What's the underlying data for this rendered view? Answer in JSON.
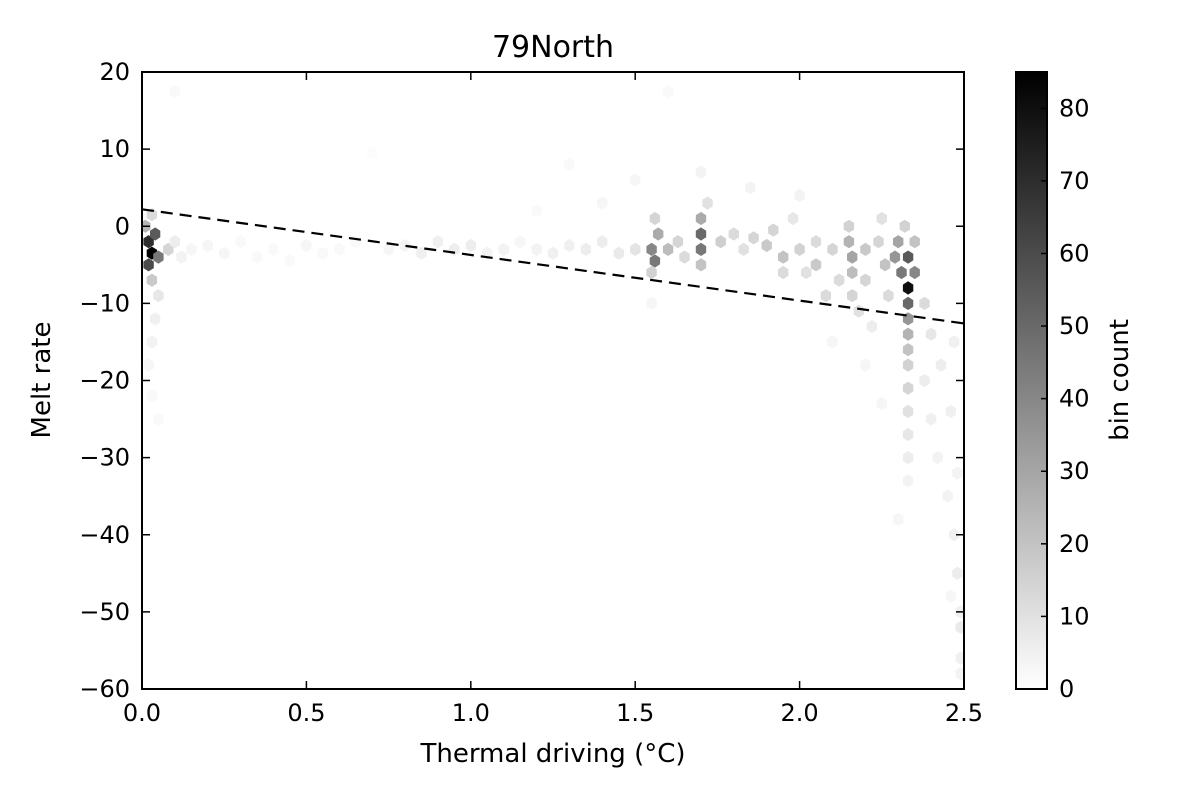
{
  "chart_data": {
    "type": "heatmap",
    "subtype": "hexbin",
    "title": "79North",
    "xlabel": "Thermal driving (°C)",
    "ylabel": "Melt rate",
    "xlim": [
      0.0,
      2.5
    ],
    "ylim": [
      -60,
      20
    ],
    "x_ticks": [
      0.0,
      0.5,
      1.0,
      1.5,
      2.0,
      2.5
    ],
    "x_tick_labels": [
      "0.0",
      "0.5",
      "1.0",
      "1.5",
      "2.0",
      "2.5"
    ],
    "y_ticks": [
      20,
      10,
      0,
      -10,
      -20,
      -30,
      -40,
      -50,
      -60
    ],
    "y_tick_labels": [
      "20",
      "10",
      "0",
      "−10",
      "−20",
      "−30",
      "−40",
      "−50",
      "−60"
    ],
    "grid": false,
    "colormap": "Greys",
    "colorbar": {
      "label": "bin count",
      "min": 0,
      "max": 85,
      "ticks": [
        0,
        10,
        20,
        30,
        40,
        50,
        60,
        70,
        80
      ],
      "tick_labels": [
        "0",
        "10",
        "20",
        "30",
        "40",
        "50",
        "60",
        "70",
        "80"
      ]
    },
    "fit_line": {
      "style": "dashed",
      "color": "#000000",
      "x": [
        0.0,
        2.5
      ],
      "y": [
        2.2,
        -12.6
      ]
    },
    "bins": [
      {
        "x": 0.02,
        "y": -2,
        "count": 70
      },
      {
        "x": 0.03,
        "y": -3.5,
        "count": 85
      },
      {
        "x": 0.02,
        "y": -5,
        "count": 60
      },
      {
        "x": 0.04,
        "y": -1,
        "count": 55
      },
      {
        "x": 0.05,
        "y": -4,
        "count": 45
      },
      {
        "x": 0.01,
        "y": 0,
        "count": 25
      },
      {
        "x": 0.03,
        "y": 1.5,
        "count": 12
      },
      {
        "x": 0.03,
        "y": -7,
        "count": 18
      },
      {
        "x": 0.05,
        "y": -9,
        "count": 8
      },
      {
        "x": 0.04,
        "y": -12,
        "count": 5
      },
      {
        "x": 0.03,
        "y": -15,
        "count": 4
      },
      {
        "x": 0.02,
        "y": -18,
        "count": 3
      },
      {
        "x": 0.03,
        "y": -22,
        "count": 2
      },
      {
        "x": 0.05,
        "y": -25,
        "count": 2
      },
      {
        "x": 0.08,
        "y": -3,
        "count": 14
      },
      {
        "x": 0.1,
        "y": -2,
        "count": 6
      },
      {
        "x": 0.12,
        "y": -4,
        "count": 4
      },
      {
        "x": 0.15,
        "y": -3,
        "count": 3
      },
      {
        "x": 0.1,
        "y": 17.5,
        "count": 2
      },
      {
        "x": 0.2,
        "y": -2.5,
        "count": 3
      },
      {
        "x": 0.25,
        "y": -3.5,
        "count": 3
      },
      {
        "x": 0.3,
        "y": -2,
        "count": 2
      },
      {
        "x": 0.35,
        "y": -4,
        "count": 2
      },
      {
        "x": 0.4,
        "y": -3,
        "count": 2
      },
      {
        "x": 0.45,
        "y": -4.5,
        "count": 2
      },
      {
        "x": 0.5,
        "y": -2.5,
        "count": 3
      },
      {
        "x": 0.55,
        "y": -3.5,
        "count": 2
      },
      {
        "x": 0.6,
        "y": -3,
        "count": 2
      },
      {
        "x": 0.65,
        "y": -2,
        "count": 2
      },
      {
        "x": 0.7,
        "y": 9.5,
        "count": 1
      },
      {
        "x": 0.75,
        "y": -3,
        "count": 3
      },
      {
        "x": 0.8,
        "y": -2.5,
        "count": 4
      },
      {
        "x": 0.85,
        "y": -3.5,
        "count": 5
      },
      {
        "x": 0.9,
        "y": -2,
        "count": 5
      },
      {
        "x": 0.95,
        "y": -3,
        "count": 6
      },
      {
        "x": 1.0,
        "y": -2.5,
        "count": 6
      },
      {
        "x": 1.05,
        "y": -3.5,
        "count": 4
      },
      {
        "x": 1.1,
        "y": -3,
        "count": 4
      },
      {
        "x": 1.15,
        "y": -2,
        "count": 3
      },
      {
        "x": 1.2,
        "y": -3,
        "count": 4
      },
      {
        "x": 1.25,
        "y": -3.5,
        "count": 5
      },
      {
        "x": 1.3,
        "y": -2.5,
        "count": 5
      },
      {
        "x": 1.35,
        "y": -3,
        "count": 6
      },
      {
        "x": 1.4,
        "y": -2,
        "count": 6
      },
      {
        "x": 1.45,
        "y": -3.5,
        "count": 7
      },
      {
        "x": 1.5,
        "y": -3,
        "count": 9
      },
      {
        "x": 1.55,
        "y": -3,
        "count": 40
      },
      {
        "x": 1.56,
        "y": -4.5,
        "count": 45
      },
      {
        "x": 1.57,
        "y": -1,
        "count": 28
      },
      {
        "x": 1.56,
        "y": 1,
        "count": 14
      },
      {
        "x": 1.55,
        "y": -6,
        "count": 15
      },
      {
        "x": 1.6,
        "y": -3,
        "count": 22
      },
      {
        "x": 1.63,
        "y": -2,
        "count": 14
      },
      {
        "x": 1.65,
        "y": -4,
        "count": 12
      },
      {
        "x": 1.7,
        "y": -1,
        "count": 50
      },
      {
        "x": 1.7,
        "y": -3,
        "count": 45
      },
      {
        "x": 1.7,
        "y": 1,
        "count": 28
      },
      {
        "x": 1.7,
        "y": -5,
        "count": 20
      },
      {
        "x": 1.72,
        "y": 3,
        "count": 10
      },
      {
        "x": 1.7,
        "y": 7,
        "count": 4
      },
      {
        "x": 1.76,
        "y": -2,
        "count": 16
      },
      {
        "x": 1.8,
        "y": -1,
        "count": 12
      },
      {
        "x": 1.83,
        "y": -3,
        "count": 10
      },
      {
        "x": 1.86,
        "y": -1.5,
        "count": 14
      },
      {
        "x": 1.9,
        "y": -2.5,
        "count": 18
      },
      {
        "x": 1.92,
        "y": -0.5,
        "count": 14
      },
      {
        "x": 1.95,
        "y": -4,
        "count": 20
      },
      {
        "x": 1.95,
        "y": -6,
        "count": 12
      },
      {
        "x": 1.98,
        "y": 1,
        "count": 8
      },
      {
        "x": 2.0,
        "y": -3,
        "count": 15
      },
      {
        "x": 2.02,
        "y": -6,
        "count": 10
      },
      {
        "x": 2.05,
        "y": -2,
        "count": 12
      },
      {
        "x": 2.05,
        "y": -5,
        "count": 18
      },
      {
        "x": 2.08,
        "y": -9,
        "count": 12
      },
      {
        "x": 2.1,
        "y": -3,
        "count": 14
      },
      {
        "x": 2.12,
        "y": -7,
        "count": 12
      },
      {
        "x": 2.15,
        "y": -2,
        "count": 25
      },
      {
        "x": 2.15,
        "y": 0,
        "count": 15
      },
      {
        "x": 2.16,
        "y": -4,
        "count": 30
      },
      {
        "x": 2.16,
        "y": -6,
        "count": 22
      },
      {
        "x": 2.16,
        "y": -9,
        "count": 14
      },
      {
        "x": 2.18,
        "y": -11,
        "count": 10
      },
      {
        "x": 2.2,
        "y": -3,
        "count": 18
      },
      {
        "x": 2.2,
        "y": -7,
        "count": 14
      },
      {
        "x": 2.22,
        "y": -13,
        "count": 6
      },
      {
        "x": 2.24,
        "y": -2,
        "count": 14
      },
      {
        "x": 2.25,
        "y": 1,
        "count": 10
      },
      {
        "x": 2.26,
        "y": -5,
        "count": 20
      },
      {
        "x": 2.27,
        "y": -9,
        "count": 12
      },
      {
        "x": 2.29,
        "y": -4,
        "count": 35
      },
      {
        "x": 2.3,
        "y": -2,
        "count": 30
      },
      {
        "x": 2.31,
        "y": -6,
        "count": 45
      },
      {
        "x": 2.32,
        "y": 0,
        "count": 15
      },
      {
        "x": 2.33,
        "y": -4,
        "count": 55
      },
      {
        "x": 2.33,
        "y": -8,
        "count": 80
      },
      {
        "x": 2.33,
        "y": -10,
        "count": 50
      },
      {
        "x": 2.33,
        "y": -12,
        "count": 35
      },
      {
        "x": 2.33,
        "y": -14,
        "count": 25
      },
      {
        "x": 2.33,
        "y": -16,
        "count": 20
      },
      {
        "x": 2.33,
        "y": -18,
        "count": 15
      },
      {
        "x": 2.33,
        "y": -21,
        "count": 14
      },
      {
        "x": 2.33,
        "y": -24,
        "count": 10
      },
      {
        "x": 2.33,
        "y": -27,
        "count": 8
      },
      {
        "x": 2.33,
        "y": -30,
        "count": 6
      },
      {
        "x": 2.33,
        "y": -33,
        "count": 4
      },
      {
        "x": 2.35,
        "y": -6,
        "count": 40
      },
      {
        "x": 2.35,
        "y": -2,
        "count": 20
      },
      {
        "x": 2.38,
        "y": -10,
        "count": 12
      },
      {
        "x": 2.38,
        "y": -20,
        "count": 6
      },
      {
        "x": 2.4,
        "y": -14,
        "count": 8
      },
      {
        "x": 2.4,
        "y": -25,
        "count": 5
      },
      {
        "x": 2.42,
        "y": -30,
        "count": 4
      },
      {
        "x": 2.43,
        "y": -18,
        "count": 6
      },
      {
        "x": 2.45,
        "y": -35,
        "count": 4
      },
      {
        "x": 2.46,
        "y": -24,
        "count": 5
      },
      {
        "x": 2.47,
        "y": -40,
        "count": 5
      },
      {
        "x": 2.48,
        "y": -45,
        "count": 6
      },
      {
        "x": 2.48,
        "y": -32,
        "count": 4
      },
      {
        "x": 2.49,
        "y": -50,
        "count": 5
      },
      {
        "x": 2.49,
        "y": -52,
        "count": 7
      },
      {
        "x": 2.49,
        "y": -56,
        "count": 5
      },
      {
        "x": 2.49,
        "y": -58,
        "count": 4
      },
      {
        "x": 2.47,
        "y": -15,
        "count": 5
      },
      {
        "x": 2.46,
        "y": -48,
        "count": 3
      },
      {
        "x": 2.2,
        "y": -18,
        "count": 3
      },
      {
        "x": 2.1,
        "y": -15,
        "count": 3
      },
      {
        "x": 2.25,
        "y": -23,
        "count": 3
      },
      {
        "x": 2.3,
        "y": -38,
        "count": 3
      },
      {
        "x": 1.55,
        "y": -10,
        "count": 3
      },
      {
        "x": 1.6,
        "y": 17.5,
        "count": 2
      },
      {
        "x": 1.5,
        "y": 6,
        "count": 3
      },
      {
        "x": 1.85,
        "y": 5,
        "count": 4
      },
      {
        "x": 2.0,
        "y": 4,
        "count": 4
      },
      {
        "x": 1.4,
        "y": 3,
        "count": 3
      },
      {
        "x": 1.2,
        "y": 2,
        "count": 2
      },
      {
        "x": 1.3,
        "y": 8,
        "count": 2
      }
    ]
  }
}
